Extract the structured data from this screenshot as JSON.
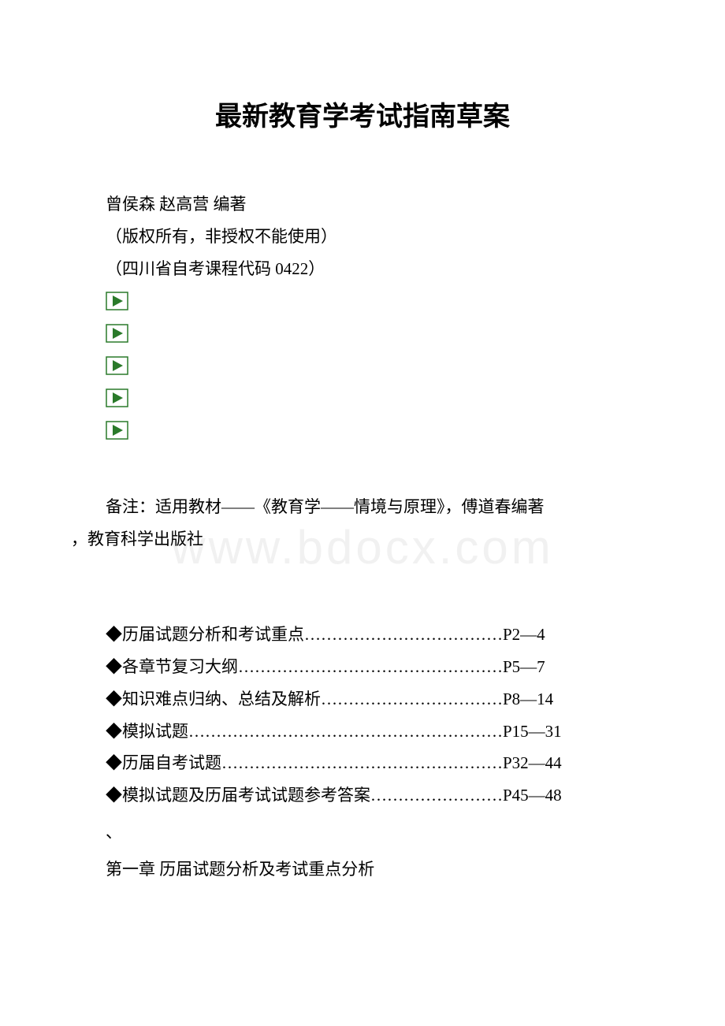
{
  "title": "最新教育学考试指南草案",
  "authors": "曾侯森 赵高营 编著",
  "copyright": "（版权所有，非授权不能使用）",
  "course_code": "（四川省自考课程代码 0422）",
  "play_icons": {
    "count": 5,
    "width": 29,
    "height": 24,
    "fill": "#ffffff",
    "stroke": "#2a7a2a",
    "triangle_fill": "#2a7a2a"
  },
  "note_prefix": "备注：适用教材——《教育学——情境与原理》，傅道春编著",
  "note_suffix": "，教育科学出版社",
  "toc": [
    {
      "label": "◆历届试题分析和考试重点………………………………P2—4"
    },
    {
      "label": "◆各章节复习大纲…………………………………………P5—7"
    },
    {
      "label": "◆知识难点归纳、总结及解析……………………………P8—14"
    },
    {
      "label": "◆模拟试题…………………………………………………P15—31"
    },
    {
      "label": "◆历届自考试题……………………………………………P32—44"
    },
    {
      "label": "◆模拟试题及历届考试试题参考答案……………………P45—48"
    }
  ],
  "backtick": "、",
  "chapter": "第一章 历届试题分析及考试重点分析",
  "watermark": "www.bdocx.com"
}
